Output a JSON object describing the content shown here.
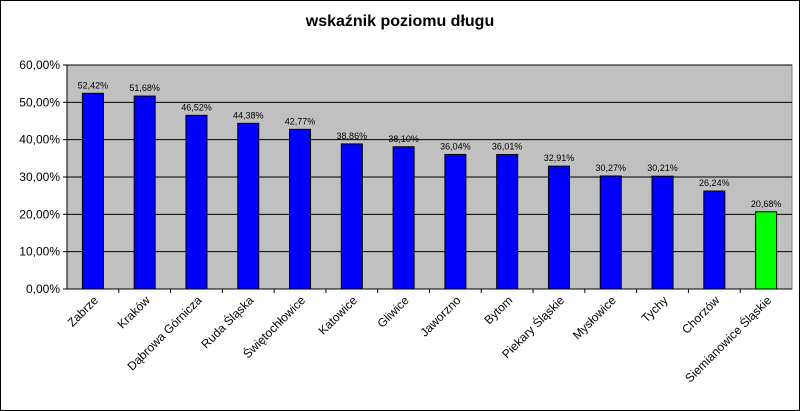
{
  "chart_data": {
    "type": "bar",
    "title": "wskaźnik poziomu długu",
    "xlabel": "",
    "ylabel": "",
    "ylim": [
      0,
      60
    ],
    "y_ticks": [
      "0,00%",
      "10,00%",
      "20,00%",
      "30,00%",
      "40,00%",
      "50,00%",
      "60,00%"
    ],
    "grid": true,
    "legend": "none",
    "colors": {
      "bar": "#0000FF",
      "highlight": "#00FF00",
      "plot_bg": "#C0C0C0"
    },
    "categories": [
      "Zabrze",
      "Kraków",
      "Dąbrowa Górnicza",
      "Ruda Śląska",
      "Świętochłowice",
      "Katowice",
      "Gliwice",
      "Jaworzno",
      "Bytom",
      "Piekary Śląskie",
      "Mysłowice",
      "Tychy",
      "Chorzów",
      "Siemianowice Śląskie"
    ],
    "values": [
      52.42,
      51.68,
      46.52,
      44.38,
      42.77,
      38.86,
      38.1,
      36.04,
      36.01,
      32.91,
      30.27,
      30.21,
      26.24,
      20.68
    ],
    "value_labels": [
      "52,42%",
      "51,68%",
      "46,52%",
      "44,38%",
      "42,77%",
      "38,86%",
      "38,10%",
      "36,04%",
      "36,01%",
      "32,91%",
      "30,27%",
      "30,21%",
      "26,24%",
      "20,68%"
    ],
    "highlight_index": 13
  }
}
